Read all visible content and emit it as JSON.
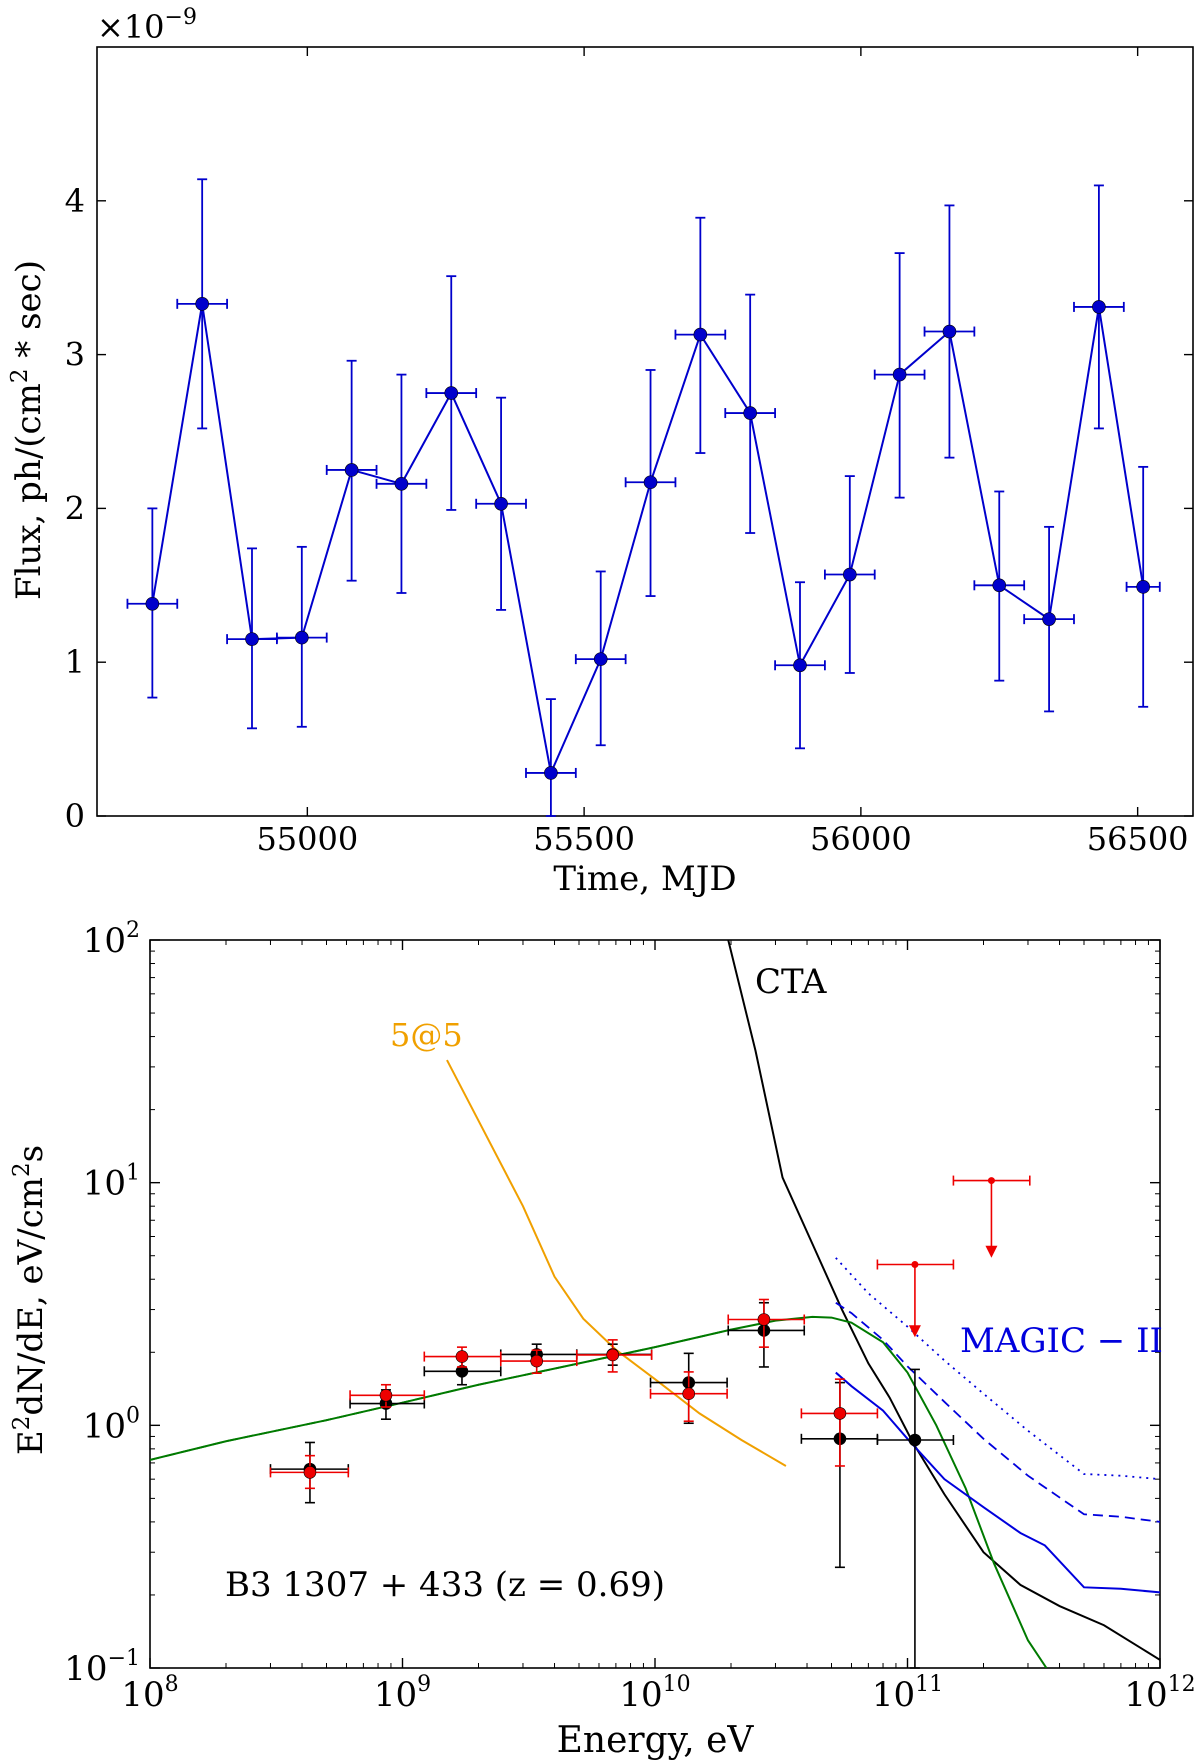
{
  "chart_data": [
    {
      "type": "scatter",
      "title": "",
      "xlabel": "Time, MJD",
      "ylabel": "Flux, ph/(cm² * sec)",
      "ylabel_parts": {
        "pre": "Flux, ph/(cm",
        "sup": "2",
        "post": " * sec)"
      },
      "offset_text": {
        "pre": "×10",
        "sup": "−9"
      },
      "xlim": [
        54620,
        56600
      ],
      "ylim": [
        0,
        5.0
      ],
      "xticks": [
        55000,
        55500,
        56000,
        56500
      ],
      "xtick_labels": [
        "55000",
        "55500",
        "56000",
        "56500"
      ],
      "yticks": [
        0,
        1,
        2,
        3,
        4
      ],
      "ytick_labels": [
        "0",
        "1",
        "2",
        "3",
        "4"
      ],
      "series": [
        {
          "name": "light curve",
          "color": "#0000cc",
          "x": [
            54720,
            54810,
            54900,
            54990,
            55080,
            55170,
            55260,
            55350,
            55440,
            55530,
            55620,
            55710,
            55800,
            55890,
            55980,
            56070,
            56160,
            56250,
            56340,
            56430,
            56510
          ],
          "y": [
            1.38,
            3.33,
            1.15,
            1.16,
            2.25,
            2.16,
            2.75,
            2.03,
            0.28,
            1.02,
            2.17,
            3.13,
            2.62,
            0.98,
            1.57,
            2.87,
            3.15,
            1.5,
            1.28,
            3.31,
            1.49
          ],
          "xerr": [
            45,
            45,
            45,
            45,
            45,
            45,
            45,
            45,
            45,
            45,
            45,
            45,
            45,
            45,
            45,
            45,
            45,
            45,
            45,
            45,
            30
          ],
          "yerr_low": [
            0.61,
            0.81,
            0.58,
            0.58,
            0.72,
            0.71,
            0.76,
            0.69,
            0.28,
            0.56,
            0.74,
            0.77,
            0.78,
            0.54,
            0.64,
            0.8,
            0.82,
            0.62,
            0.6,
            0.79,
            0.78
          ],
          "yerr_high": [
            0.62,
            0.81,
            0.59,
            0.59,
            0.71,
            0.71,
            0.76,
            0.69,
            0.48,
            0.57,
            0.73,
            0.76,
            0.77,
            0.54,
            0.64,
            0.79,
            0.82,
            0.61,
            0.6,
            0.79,
            0.78
          ]
        }
      ]
    },
    {
      "type": "scatter",
      "title": "",
      "xlabel": "Energy, eV",
      "ylabel": "E²dN/dE, eV/cm²s",
      "ylabel_parts": {
        "p1": "E",
        "s1": "2",
        "p2": "dN/dE, eV/cm",
        "s2": "2",
        "p3": "s"
      },
      "xscale": "log",
      "yscale": "log",
      "xlim": [
        100000000.0,
        1000000000000.0
      ],
      "ylim": [
        0.1,
        100
      ],
      "xticks": [
        100000000.0,
        1000000000.0,
        10000000000.0,
        100000000000.0,
        1000000000000.0
      ],
      "xtick_labels": [
        {
          "base": "10",
          "exp": "8"
        },
        {
          "base": "10",
          "exp": "9"
        },
        {
          "base": "10",
          "exp": "10"
        },
        {
          "base": "10",
          "exp": "11"
        },
        {
          "base": "10",
          "exp": "12"
        }
      ],
      "yticks": [
        0.1,
        1,
        10,
        100
      ],
      "ytick_labels": [
        {
          "base": "10",
          "exp": "−1"
        },
        {
          "base": "10",
          "exp": "0"
        },
        {
          "base": "10",
          "exp": "1"
        },
        {
          "base": "10",
          "exp": "2"
        }
      ],
      "annotations": {
        "source": "B3 1307 + 433 (z = 0.69)",
        "cta": "CTA",
        "fiveatfive": "5@5",
        "magic": "MAGIC − II"
      },
      "points": [
        {
          "name": "black data",
          "color": "#000000",
          "x": [
            430000000.0,
            860000000.0,
            1720000000.0,
            3400000000.0,
            6800000000.0,
            13600000000.0,
            27000000000.0,
            54000000000.0,
            107000000000.0
          ],
          "y": [
            0.66,
            1.23,
            1.67,
            1.96,
            1.96,
            1.5,
            2.46,
            0.88,
            0.87
          ],
          "xlo": [
            300000000.0,
            620000000.0,
            1220000000.0,
            2450000000.0,
            4900000000.0,
            9600000000.0,
            19500000000.0,
            38000000000.0,
            76000000000.0
          ],
          "xhi": [
            610000000.0,
            1220000000.0,
            2450000000.0,
            4900000000.0,
            9700000000.0,
            19300000000.0,
            39000000000.0,
            76000000000.0,
            152000000000.0
          ],
          "ylo": [
            0.48,
            1.06,
            1.47,
            1.78,
            1.77,
            1.02,
            1.74,
            0.26,
            0.1
          ],
          "yhi": [
            0.85,
            1.4,
            1.88,
            2.16,
            2.16,
            1.98,
            3.2,
            1.5,
            1.7
          ]
        },
        {
          "name": "red data",
          "color": "#ee0000",
          "x": [
            430000000.0,
            860000000.0,
            1720000000.0,
            3400000000.0,
            6800000000.0,
            13600000000.0,
            27000000000.0,
            54000000000.0
          ],
          "y": [
            0.64,
            1.33,
            1.92,
            1.84,
            1.95,
            1.35,
            2.73,
            1.12
          ],
          "xlo": [
            300000000.0,
            620000000.0,
            1220000000.0,
            2450000000.0,
            4900000000.0,
            9600000000.0,
            19500000000.0,
            38000000000.0
          ],
          "xhi": [
            610000000.0,
            1220000000.0,
            2450000000.0,
            4900000000.0,
            9700000000.0,
            19300000000.0,
            39000000000.0,
            76000000000.0
          ],
          "ylo": [
            0.55,
            1.19,
            1.74,
            1.64,
            1.66,
            1.04,
            2.1,
            0.68
          ],
          "yhi": [
            0.75,
            1.47,
            2.1,
            2.04,
            2.25,
            1.66,
            3.3,
            1.55
          ]
        }
      ],
      "upper_limits": {
        "color": "#ee0000",
        "x": [
          107000000000.0,
          215000000000.0
        ],
        "y": [
          4.6,
          10.2
        ],
        "xlo": [
          76000000000.0,
          152000000000.0
        ],
        "xhi": [
          152000000000.0,
          305000000000.0
        ],
        "arrow_to": [
          2.35,
          5.0
        ]
      },
      "curves": [
        {
          "name": "CTA",
          "color": "#000000",
          "style": "solid",
          "x": [
            19500000000.0,
            25000000000.0,
            32000000000.0,
            42000000000.0,
            55000000000.0,
            70000000000.0,
            85000000000.0,
            105000000000.0,
            140000000000.0,
            200000000000.0,
            280000000000.0,
            400000000000.0,
            600000000000.0,
            1000000000000.0
          ],
          "y": [
            100,
            35,
            10.5,
            5.6,
            3.0,
            1.8,
            1.3,
            0.85,
            0.52,
            0.3,
            0.22,
            0.18,
            0.15,
            0.108
          ]
        },
        {
          "name": "5@5",
          "color": "#f0a000",
          "style": "solid",
          "x": [
            1500000000.0,
            2000000000.0,
            3000000000.0,
            4000000000.0,
            5200000000.0,
            7000000000.0,
            10000000000.0,
            15000000000.0,
            22000000000.0,
            33000000000.0
          ],
          "y": [
            32,
            18,
            8.0,
            4.1,
            2.75,
            2.05,
            1.55,
            1.12,
            0.87,
            0.68
          ]
        },
        {
          "name": "model",
          "color": "#007a00",
          "style": "solid",
          "x": [
            100000000.0,
            200000000.0,
            500000000.0,
            1000000000.0,
            2000000000.0,
            5000000000.0,
            10000000000.0,
            20000000000.0,
            30000000000.0,
            42000000000.0,
            50000000000.0,
            60000000000.0,
            80000000000.0,
            100000000000.0,
            130000000000.0,
            170000000000.0,
            220000000000.0,
            300000000000.0,
            355000000000.0
          ],
          "y": [
            0.72,
            0.86,
            1.05,
            1.24,
            1.47,
            1.8,
            2.1,
            2.48,
            2.7,
            2.8,
            2.78,
            2.65,
            2.2,
            1.65,
            1.0,
            0.55,
            0.27,
            0.13,
            0.1
          ]
        },
        {
          "name": "model dashed",
          "color": "#007a00",
          "style": "dashed",
          "x": [
            100000000.0,
            200000000.0,
            500000000.0,
            1000000000.0,
            2000000000.0,
            5000000000.0,
            10000000000.0,
            20000000000.0
          ],
          "y": [
            0.72,
            0.86,
            1.05,
            1.24,
            1.47,
            1.8,
            2.1,
            2.48
          ]
        },
        {
          "name": "MAGIC-II solid",
          "color": "#0000dd",
          "style": "solid",
          "x": [
            52000000000.0,
            60000000000.0,
            80000000000.0,
            100000000000.0,
            140000000000.0,
            200000000000.0,
            280000000000.0,
            350000000000.0,
            500000000000.0,
            700000000000.0,
            1000000000000.0
          ],
          "y": [
            1.65,
            1.45,
            1.15,
            0.88,
            0.6,
            0.46,
            0.36,
            0.32,
            0.215,
            0.212,
            0.205
          ]
        },
        {
          "name": "MAGIC-II dashed",
          "color": "#0000dd",
          "style": "dashed",
          "x": [
            52000000000.0,
            60000000000.0,
            80000000000.0,
            100000000000.0,
            140000000000.0,
            200000000000.0,
            300000000000.0,
            500000000000.0,
            700000000000.0,
            1000000000000.0
          ],
          "y": [
            3.2,
            2.9,
            2.25,
            1.75,
            1.25,
            0.88,
            0.62,
            0.43,
            0.42,
            0.4
          ]
        },
        {
          "name": "MAGIC-II dotted",
          "color": "#0000dd",
          "style": "dotted",
          "x": [
            52000000000.0,
            70000000000.0,
            100000000000.0,
            140000000000.0,
            200000000000.0,
            300000000000.0,
            500000000000.0,
            700000000000.0,
            1000000000000.0
          ],
          "y": [
            4.9,
            3.5,
            2.55,
            1.85,
            1.35,
            0.95,
            0.63,
            0.62,
            0.6
          ]
        }
      ]
    }
  ]
}
